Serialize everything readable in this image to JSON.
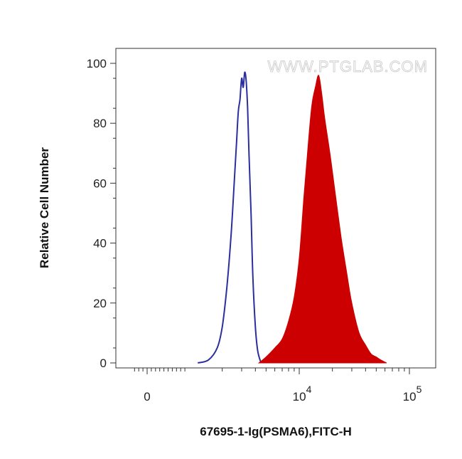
{
  "chart_data": {
    "type": "area",
    "title": "",
    "watermark": "WWW.PTGLAB.COM",
    "xlabel": "67695-1-Ig(PSMA6),FITC-H",
    "ylabel": "Relative Cell Number",
    "x_scale": "biexponential",
    "xlim": [
      -300,
      200000
    ],
    "ylim": [
      0,
      100
    ],
    "grid": false,
    "y_ticks": [
      {
        "value": 0,
        "label": "0"
      },
      {
        "value": 20,
        "label": "20"
      },
      {
        "value": 40,
        "label": "40"
      },
      {
        "value": 60,
        "label": "60"
      },
      {
        "value": 80,
        "label": "80"
      },
      {
        "value": 100,
        "label": "100"
      }
    ],
    "x_ticks": [
      {
        "value": 0,
        "base": "0",
        "exp": ""
      },
      {
        "value": 10000,
        "base": "10",
        "exp": "4"
      },
      {
        "value": 100000,
        "base": "10",
        "exp": "5"
      }
    ],
    "series": [
      {
        "name": "",
        "style": "outline",
        "color": "#2b2f9e",
        "x": [
          1200,
          1500,
          1800,
          2000,
          2200,
          2400,
          2550,
          2700,
          2800,
          2900,
          3000,
          3100,
          3200,
          3300,
          3400,
          3500,
          3650,
          3800,
          4000,
          4200,
          4500
        ],
        "y": [
          0,
          1,
          5,
          12,
          25,
          42,
          58,
          74,
          84,
          88,
          95,
          92,
          97,
          94,
          85,
          70,
          50,
          28,
          12,
          4,
          0
        ]
      },
      {
        "name": "",
        "style": "filled",
        "color": "#cc0000",
        "x": [
          4300,
          5000,
          6000,
          7000,
          8000,
          9000,
          10000,
          11000,
          12000,
          13000,
          14000,
          15000,
          16000,
          17000,
          19000,
          21000,
          24000,
          27000,
          30000,
          35000,
          40000,
          45000,
          50000,
          55000,
          62000
        ],
        "y": [
          0,
          2,
          5,
          8,
          14,
          22,
          35,
          55,
          72,
          86,
          92,
          96,
          90,
          82,
          70,
          58,
          42,
          30,
          20,
          10,
          6,
          3,
          2,
          1,
          0
        ]
      }
    ]
  }
}
